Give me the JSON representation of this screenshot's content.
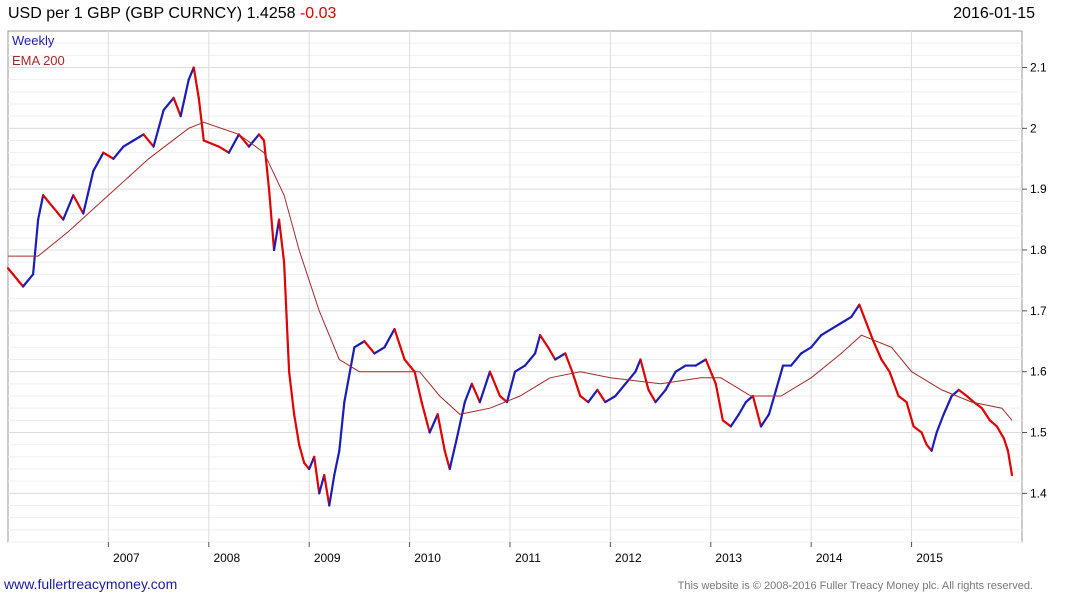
{
  "header": {
    "title": "USD per 1 GBP (GBP CURNCY) 1.4258",
    "change": "-0.03",
    "date": "2016-01-15"
  },
  "footer": {
    "site_link": "www.fullertreacymoney.com",
    "copyright": "This website is © 2008-2016 Fuller Treacy Money plc. All rights reserved."
  },
  "colors": {
    "up": "#1c1cb8",
    "down": "#e00000",
    "ema": "#a52a2a",
    "grid": "#dcdcdc",
    "weekly_label": "#1c1cb8",
    "ema_label": "#a52a2a"
  },
  "chart_data": {
    "type": "line",
    "legend": [
      "Weekly",
      "EMA 200"
    ],
    "legend_position": "top-left",
    "x_ticks": [
      "2007",
      "2008",
      "2009",
      "2010",
      "2011",
      "2012",
      "2013",
      "2014",
      "2015"
    ],
    "y_ticks": [
      1.4,
      1.5,
      1.6,
      1.7,
      1.8,
      1.9,
      2.0,
      2.1
    ],
    "ylim": [
      1.32,
      2.16
    ],
    "xlim": [
      2006.0,
      2016.1
    ],
    "grid": true,
    "series": [
      {
        "name": "Weekly",
        "points": [
          [
            2006.0,
            1.77
          ],
          [
            2006.15,
            1.74
          ],
          [
            2006.25,
            1.76
          ],
          [
            2006.3,
            1.85
          ],
          [
            2006.35,
            1.89
          ],
          [
            2006.45,
            1.87
          ],
          [
            2006.55,
            1.85
          ],
          [
            2006.65,
            1.89
          ],
          [
            2006.75,
            1.86
          ],
          [
            2006.85,
            1.93
          ],
          [
            2006.95,
            1.96
          ],
          [
            2007.05,
            1.95
          ],
          [
            2007.15,
            1.97
          ],
          [
            2007.25,
            1.98
          ],
          [
            2007.35,
            1.99
          ],
          [
            2007.45,
            1.97
          ],
          [
            2007.55,
            2.03
          ],
          [
            2007.65,
            2.05
          ],
          [
            2007.72,
            2.02
          ],
          [
            2007.8,
            2.08
          ],
          [
            2007.85,
            2.1
          ],
          [
            2007.9,
            2.05
          ],
          [
            2007.95,
            1.98
          ],
          [
            2008.1,
            1.97
          ],
          [
            2008.2,
            1.96
          ],
          [
            2008.3,
            1.99
          ],
          [
            2008.4,
            1.97
          ],
          [
            2008.5,
            1.99
          ],
          [
            2008.55,
            1.98
          ],
          [
            2008.6,
            1.9
          ],
          [
            2008.65,
            1.8
          ],
          [
            2008.7,
            1.85
          ],
          [
            2008.75,
            1.78
          ],
          [
            2008.8,
            1.6
          ],
          [
            2008.85,
            1.53
          ],
          [
            2008.9,
            1.48
          ],
          [
            2008.95,
            1.45
          ],
          [
            2009.0,
            1.44
          ],
          [
            2009.05,
            1.46
          ],
          [
            2009.1,
            1.4
          ],
          [
            2009.15,
            1.43
          ],
          [
            2009.2,
            1.38
          ],
          [
            2009.25,
            1.43
          ],
          [
            2009.3,
            1.47
          ],
          [
            2009.35,
            1.55
          ],
          [
            2009.45,
            1.64
          ],
          [
            2009.55,
            1.65
          ],
          [
            2009.65,
            1.63
          ],
          [
            2009.75,
            1.64
          ],
          [
            2009.85,
            1.67
          ],
          [
            2009.95,
            1.62
          ],
          [
            2010.05,
            1.6
          ],
          [
            2010.12,
            1.55
          ],
          [
            2010.2,
            1.5
          ],
          [
            2010.28,
            1.53
          ],
          [
            2010.35,
            1.47
          ],
          [
            2010.4,
            1.44
          ],
          [
            2010.47,
            1.49
          ],
          [
            2010.55,
            1.55
          ],
          [
            2010.62,
            1.58
          ],
          [
            2010.7,
            1.55
          ],
          [
            2010.8,
            1.6
          ],
          [
            2010.9,
            1.56
          ],
          [
            2010.97,
            1.55
          ],
          [
            2011.05,
            1.6
          ],
          [
            2011.15,
            1.61
          ],
          [
            2011.25,
            1.63
          ],
          [
            2011.3,
            1.66
          ],
          [
            2011.38,
            1.64
          ],
          [
            2011.45,
            1.62
          ],
          [
            2011.55,
            1.63
          ],
          [
            2011.62,
            1.6
          ],
          [
            2011.7,
            1.56
          ],
          [
            2011.78,
            1.55
          ],
          [
            2011.87,
            1.57
          ],
          [
            2011.95,
            1.55
          ],
          [
            2012.05,
            1.56
          ],
          [
            2012.15,
            1.58
          ],
          [
            2012.25,
            1.6
          ],
          [
            2012.3,
            1.62
          ],
          [
            2012.38,
            1.57
          ],
          [
            2012.45,
            1.55
          ],
          [
            2012.55,
            1.57
          ],
          [
            2012.65,
            1.6
          ],
          [
            2012.75,
            1.61
          ],
          [
            2012.85,
            1.61
          ],
          [
            2012.95,
            1.62
          ],
          [
            2013.05,
            1.58
          ],
          [
            2013.12,
            1.52
          ],
          [
            2013.2,
            1.51
          ],
          [
            2013.28,
            1.53
          ],
          [
            2013.35,
            1.55
          ],
          [
            2013.42,
            1.56
          ],
          [
            2013.5,
            1.51
          ],
          [
            2013.58,
            1.53
          ],
          [
            2013.65,
            1.57
          ],
          [
            2013.72,
            1.61
          ],
          [
            2013.8,
            1.61
          ],
          [
            2013.9,
            1.63
          ],
          [
            2014.0,
            1.64
          ],
          [
            2014.1,
            1.66
          ],
          [
            2014.2,
            1.67
          ],
          [
            2014.3,
            1.68
          ],
          [
            2014.4,
            1.69
          ],
          [
            2014.48,
            1.71
          ],
          [
            2014.55,
            1.68
          ],
          [
            2014.62,
            1.65
          ],
          [
            2014.7,
            1.62
          ],
          [
            2014.78,
            1.6
          ],
          [
            2014.87,
            1.56
          ],
          [
            2014.95,
            1.55
          ],
          [
            2015.02,
            1.51
          ],
          [
            2015.1,
            1.5
          ],
          [
            2015.15,
            1.48
          ],
          [
            2015.2,
            1.47
          ],
          [
            2015.25,
            1.5
          ],
          [
            2015.32,
            1.53
          ],
          [
            2015.4,
            1.56
          ],
          [
            2015.47,
            1.57
          ],
          [
            2015.55,
            1.56
          ],
          [
            2015.62,
            1.55
          ],
          [
            2015.7,
            1.54
          ],
          [
            2015.78,
            1.52
          ],
          [
            2015.85,
            1.51
          ],
          [
            2015.92,
            1.49
          ],
          [
            2015.96,
            1.47
          ],
          [
            2016.0,
            1.43
          ]
        ]
      },
      {
        "name": "EMA 200",
        "points": [
          [
            2006.0,
            1.79
          ],
          [
            2006.3,
            1.79
          ],
          [
            2006.6,
            1.83
          ],
          [
            2007.0,
            1.89
          ],
          [
            2007.4,
            1.95
          ],
          [
            2007.8,
            2.0
          ],
          [
            2007.95,
            2.01
          ],
          [
            2008.3,
            1.99
          ],
          [
            2008.55,
            1.96
          ],
          [
            2008.75,
            1.89
          ],
          [
            2008.9,
            1.8
          ],
          [
            2009.1,
            1.7
          ],
          [
            2009.3,
            1.62
          ],
          [
            2009.5,
            1.6
          ],
          [
            2009.8,
            1.6
          ],
          [
            2010.1,
            1.6
          ],
          [
            2010.3,
            1.56
          ],
          [
            2010.5,
            1.53
          ],
          [
            2010.8,
            1.54
          ],
          [
            2011.1,
            1.56
          ],
          [
            2011.4,
            1.59
          ],
          [
            2011.7,
            1.6
          ],
          [
            2012.0,
            1.59
          ],
          [
            2012.5,
            1.58
          ],
          [
            2012.9,
            1.59
          ],
          [
            2013.1,
            1.59
          ],
          [
            2013.4,
            1.56
          ],
          [
            2013.7,
            1.56
          ],
          [
            2014.0,
            1.59
          ],
          [
            2014.3,
            1.63
          ],
          [
            2014.5,
            1.66
          ],
          [
            2014.8,
            1.64
          ],
          [
            2015.0,
            1.6
          ],
          [
            2015.3,
            1.57
          ],
          [
            2015.6,
            1.55
          ],
          [
            2015.9,
            1.54
          ],
          [
            2016.0,
            1.52
          ]
        ]
      }
    ]
  }
}
